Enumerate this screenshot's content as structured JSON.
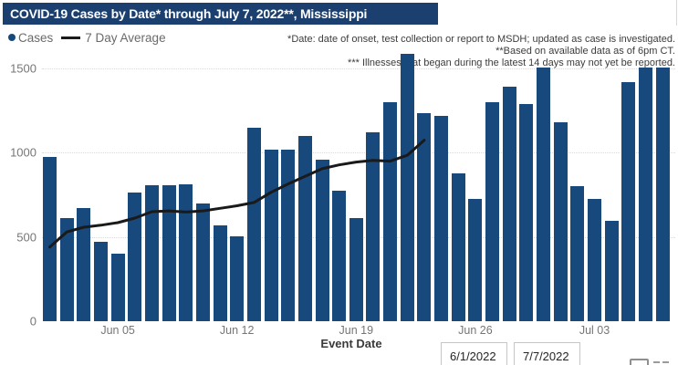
{
  "title": "COVID-19 Cases by Date* through July 7, 2022**, Mississippi",
  "legend": {
    "cases_label": "Cases",
    "avg_label": "7 Day Average"
  },
  "annotations": {
    "line1": "*Date: date of onset, test collection or report to MSDH; updated as case is investigated.",
    "line2": "**Based on available data as of 6pm CT.",
    "line3": "*** Illnesses that began during the latest 14 days may not yet be reported."
  },
  "colors": {
    "title_bg": "#1b3f6e",
    "bar": "#17497c",
    "line": "#1a1a1a",
    "axis_text": "#767676",
    "grid": "#d9d9d9"
  },
  "icons": {
    "bottom_right_1": "partial-checkbox-icon",
    "bottom_right_2": "partial-dashes-icon"
  },
  "y_axis": {
    "ticks": [
      "0",
      "500",
      "1000",
      "1500"
    ]
  },
  "x_axis": {
    "label": "Event Date",
    "ticks": [
      "Jun 05",
      "Jun 12",
      "Jun 19",
      "Jun 26",
      "Jul 03"
    ]
  },
  "date_filters": {
    "start": "6/1/2022",
    "end": "7/7/2022"
  },
  "chart_data": {
    "type": "bar",
    "title": "COVID-19 Cases by Date* through July 7, 2022**, Mississippi",
    "xlabel": "Event Date",
    "ylabel": "",
    "ylim": [
      0,
      1600
    ],
    "grid": "dotted-horizontal",
    "legend_position": "top-left",
    "x": [
      "Jun 01",
      "Jun 02",
      "Jun 03",
      "Jun 04",
      "Jun 05",
      "Jun 06",
      "Jun 07",
      "Jun 08",
      "Jun 09",
      "Jun 10",
      "Jun 11",
      "Jun 12",
      "Jun 13",
      "Jun 14",
      "Jun 15",
      "Jun 16",
      "Jun 17",
      "Jun 18",
      "Jun 19",
      "Jun 20",
      "Jun 21",
      "Jun 22",
      "Jun 23",
      "Jun 24",
      "Jun 25",
      "Jun 26",
      "Jun 27",
      "Jun 28",
      "Jun 29",
      "Jun 30",
      "Jul 01",
      "Jul 02",
      "Jul 03",
      "Jul 04",
      "Jul 05",
      "Jul 06",
      "Jul 07"
    ],
    "series": [
      {
        "name": "Cases",
        "type": "bar",
        "values": [
          975,
          615,
          670,
          470,
          400,
          765,
          810,
          810,
          815,
          700,
          570,
          505,
          1150,
          1020,
          1020,
          1100,
          960,
          775,
          610,
          1120,
          1300,
          1585,
          1235,
          1220,
          880,
          725,
          1300,
          1395,
          1290,
          1505,
          1180,
          800,
          725,
          595,
          1420,
          1505,
          1505
        ]
      },
      {
        "name": "7 Day Average",
        "type": "line",
        "values": [
          440,
          530,
          558,
          570,
          585,
          612,
          650,
          655,
          648,
          655,
          670,
          685,
          705,
          765,
          815,
          860,
          905,
          928,
          945,
          955,
          950,
          985,
          1075,
          null,
          null,
          null,
          null,
          null,
          null,
          null,
          null,
          null,
          null,
          null,
          null,
          null,
          null
        ]
      }
    ]
  }
}
